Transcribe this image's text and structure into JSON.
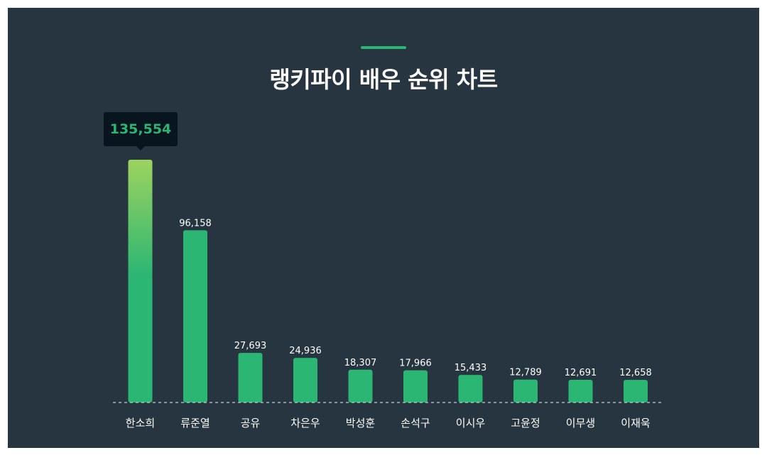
{
  "title": "랭키파이 배우 순위 차트",
  "colors": {
    "background": "#263540",
    "accent": "#2bb673",
    "bar_top_highlight": "#9dd35f",
    "tooltip_bg": "#08141e",
    "text": "#ffffff"
  },
  "tooltip": {
    "value": "135,554"
  },
  "chart_data": {
    "type": "bar",
    "title": "랭키파이 배우 순위 차트",
    "xlabel": "",
    "ylabel": "",
    "grid": false,
    "categories": [
      "한소희",
      "류준열",
      "공유",
      "차은우",
      "박성훈",
      "손석구",
      "이시우",
      "고윤정",
      "이무생",
      "이재욱"
    ],
    "values": [
      135554,
      96158,
      27693,
      24936,
      18307,
      17966,
      15433,
      12789,
      12691,
      12658
    ],
    "value_labels": [
      "135,554",
      "96,158",
      "27,693",
      "24,936",
      "18,307",
      "17,966",
      "15,433",
      "12,789",
      "12,691",
      "12,658"
    ],
    "ylim": [
      0,
      135554
    ]
  }
}
